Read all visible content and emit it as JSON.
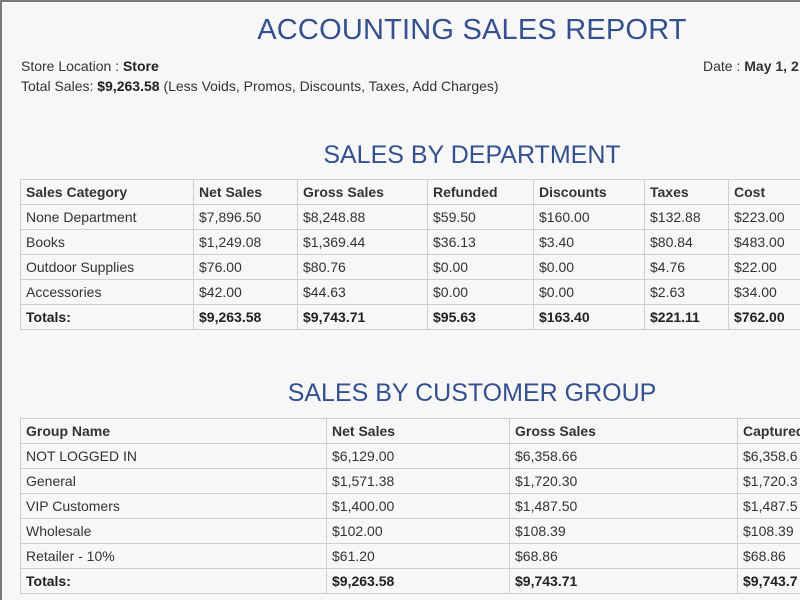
{
  "report": {
    "title": "ACCOUNTING SALES REPORT",
    "store_location_label": "Store Location : ",
    "store_location_value": "Store",
    "date_label": "Date : ",
    "date_value": "May 1, 2",
    "total_sales_label": "Total Sales: ",
    "total_sales_value": "$9,263.58",
    "total_sales_note": " (Less Voids, Promos, Discounts, Taxes, Add Charges)"
  },
  "department": {
    "title": "SALES BY DEPARTMENT",
    "headers": [
      "Sales Category",
      "Net Sales",
      "Gross Sales",
      "Refunded",
      "Discounts",
      "Taxes",
      "Cost"
    ],
    "rows": [
      [
        "None Department",
        "$7,896.50",
        "$8,248.88",
        "$59.50",
        "$160.00",
        "$132.88",
        "$223.00"
      ],
      [
        "Books",
        "$1,249.08",
        "$1,369.44",
        "$36.13",
        "$3.40",
        "$80.84",
        "$483.00"
      ],
      [
        "Outdoor Supplies",
        "$76.00",
        "$80.76",
        "$0.00",
        "$0.00",
        "$4.76",
        "$22.00"
      ],
      [
        "Accessories",
        "$42.00",
        "$44.63",
        "$0.00",
        "$0.00",
        "$2.63",
        "$34.00"
      ]
    ],
    "totals": [
      "Totals:",
      "$9,263.58",
      "$9,743.71",
      "$95.63",
      "$163.40",
      "$221.11",
      "$762.00"
    ]
  },
  "customer_group": {
    "title": "SALES BY CUSTOMER GROUP",
    "headers": [
      "Group Name",
      "Net Sales",
      "Gross Sales",
      "Captured"
    ],
    "rows": [
      [
        "NOT LOGGED IN",
        "$6,129.00",
        "$6,358.66",
        "$6,358.6"
      ],
      [
        "General",
        "$1,571.38",
        "$1,720.30",
        "$1,720.3"
      ],
      [
        "VIP Customers",
        "$1,400.00",
        "$1,487.50",
        "$1,487.5"
      ],
      [
        "Wholesale",
        "$102.00",
        "$108.39",
        "$108.39"
      ],
      [
        "Retailer - 10%",
        "$61.20",
        "$68.86",
        "$68.86"
      ]
    ],
    "totals": [
      "Totals:",
      "$9,263.58",
      "$9,743.71",
      "$9,743.7"
    ]
  }
}
